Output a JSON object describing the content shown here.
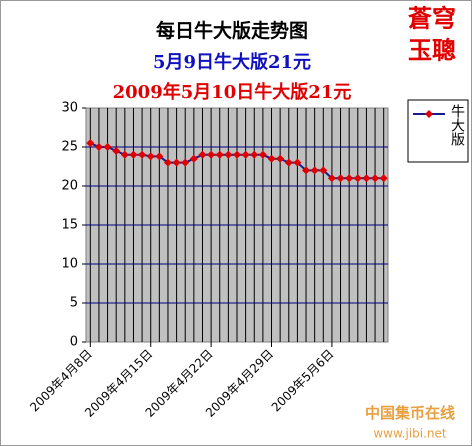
{
  "chart_data": {
    "type": "line",
    "title": "每日牛大版走势图",
    "subtitles": [
      "5月9日牛大版21元",
      "2009年5月10日牛大版21元"
    ],
    "annotations": [
      "蒼穹",
      "玉聰",
      "中国集币在线",
      "www.jibi.net"
    ],
    "categories": [
      "2009年4月8日",
      null,
      null,
      null,
      null,
      null,
      null,
      "2009年4月15日",
      null,
      null,
      null,
      null,
      null,
      null,
      "2009年4月22日",
      null,
      null,
      null,
      null,
      null,
      null,
      "2009年4月29日",
      null,
      null,
      null,
      null,
      null,
      null,
      "2009年5月6日",
      null,
      null,
      null,
      null,
      null,
      null
    ],
    "series": [
      {
        "name": "牛大版",
        "color": "#1a1a8c",
        "marker_color": "#e00000",
        "values": [
          25.5,
          25,
          25,
          24.5,
          24,
          24,
          24,
          23.8,
          23.8,
          23,
          23,
          23,
          23.5,
          24,
          24,
          24,
          24,
          24,
          24,
          24,
          24,
          23.5,
          23.5,
          23,
          23,
          22,
          22,
          22,
          21,
          21,
          21,
          21,
          21,
          21,
          21
        ]
      }
    ],
    "ylim": [
      0,
      30
    ],
    "yticks": [
      0,
      5,
      10,
      15,
      20,
      25,
      30
    ],
    "grid": true,
    "grid_color": "#000080",
    "plot_background": "#c0c0c0",
    "legend": "right"
  }
}
